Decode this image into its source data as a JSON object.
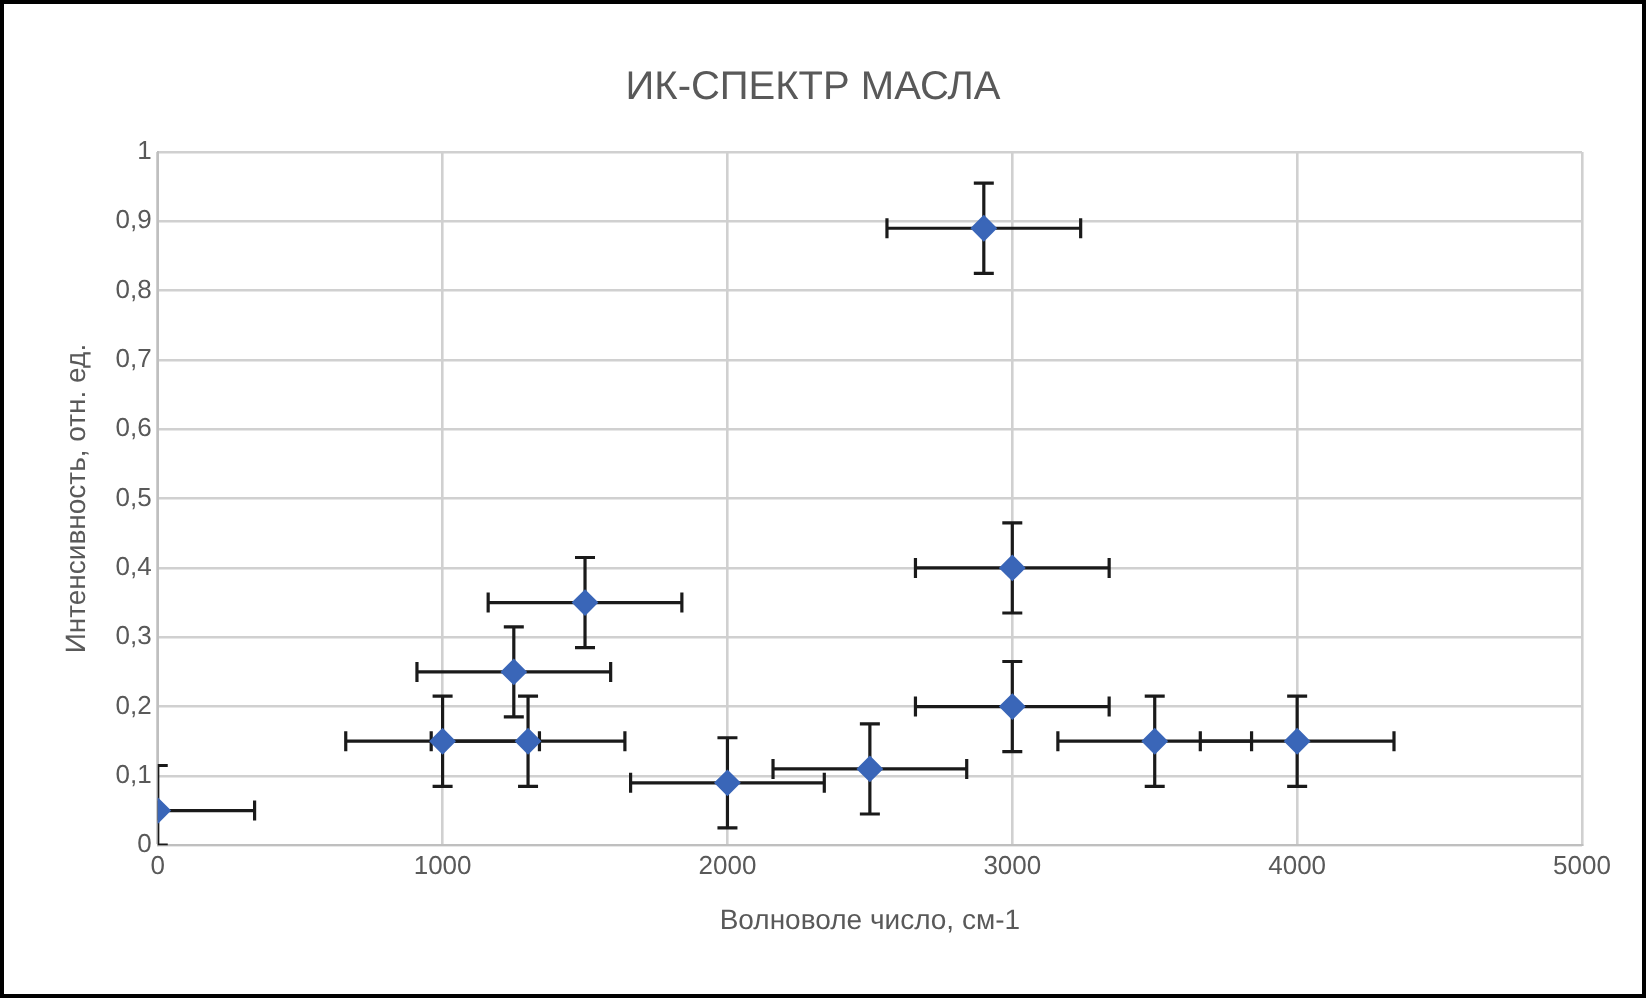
{
  "chart_data": {
    "type": "scatter",
    "title": "ИК-СПЕКТР МАСЛА",
    "xlabel": "Волноволе число, см-1",
    "ylabel": "Интенсивность, отн. ед.",
    "x": [
      0,
      1000,
      1300,
      1250,
      1500,
      2000,
      2500,
      2900,
      3000,
      3000,
      3500,
      4000
    ],
    "series": [
      {
        "color": "#3a66b8",
        "values": [
          0.05,
          0.15,
          0.15,
          0.25,
          0.35,
          0.09,
          0.11,
          0.89,
          0.4,
          0.2,
          0.15,
          0.15
        ],
        "errors": [
          [
            0,
            0.115
          ],
          0.065,
          0.065,
          0.065,
          0.065,
          0.065,
          0.065,
          0.065,
          0.065,
          0.065,
          0.065,
          0.065
        ],
        "xerrors": [
          [
            0,
            340
          ],
          340,
          340,
          340,
          340,
          340,
          340,
          340,
          340,
          340,
          340,
          340
        ]
      }
    ],
    "xlim": [
      0,
      5000
    ],
    "xticks": [
      0,
      1000,
      2000,
      3000,
      4000,
      5000
    ],
    "ylim": [
      0,
      1
    ],
    "yticks": [
      0,
      {
        "value": 0.1,
        "label": "0,1"
      },
      {
        "value": 0.2,
        "label": "0,2"
      },
      {
        "value": 0.3,
        "label": "0,3"
      },
      {
        "value": 0.4,
        "label": "0,4"
      },
      {
        "value": 0.5,
        "label": "0,5"
      },
      {
        "value": 0.6,
        "label": "0,6"
      },
      {
        "value": 0.7,
        "label": "0,7"
      },
      {
        "value": 0.8,
        "label": "0,8"
      },
      {
        "value": 0.9,
        "label": "0,9"
      },
      1
    ],
    "grid": true,
    "legend": false,
    "marker": "diamond"
  }
}
